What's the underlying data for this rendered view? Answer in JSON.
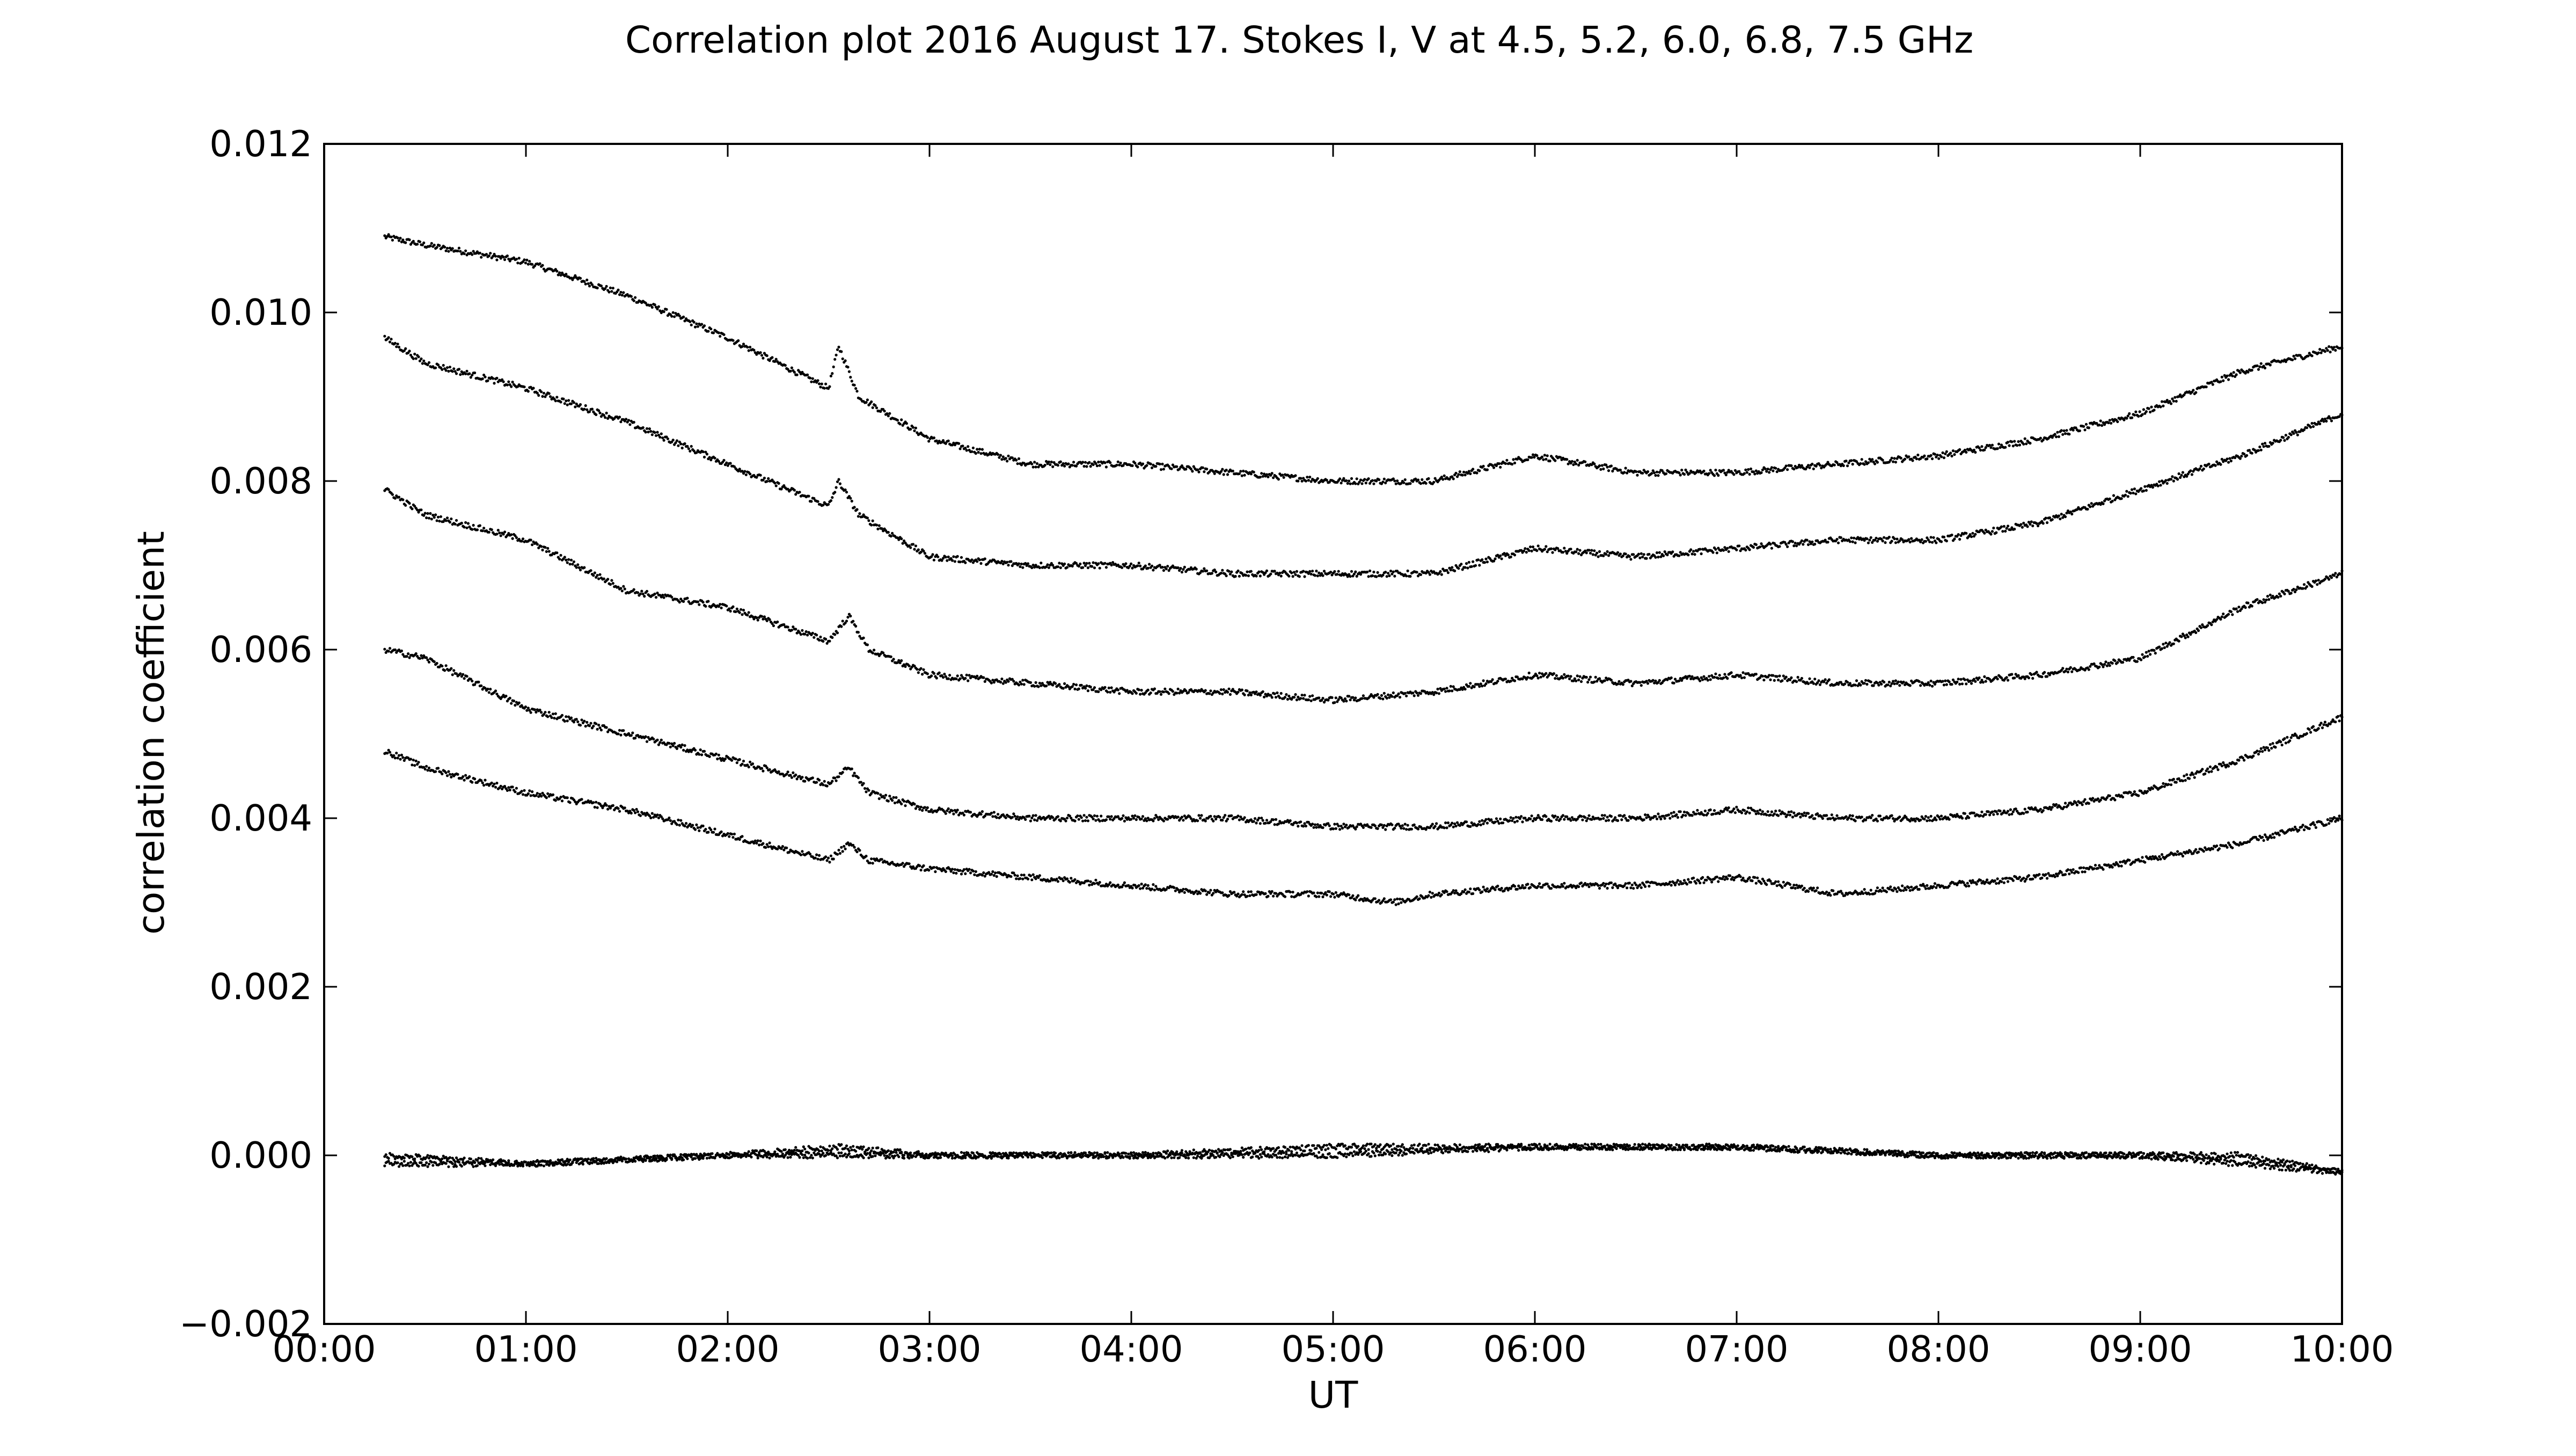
{
  "chart_data": {
    "type": "scatter",
    "title": "Correlation plot 2016 August 17. Stokes I, V at 4.5, 5.2, 6.0, 6.8, 7.5 GHz",
    "xlabel": "UT",
    "ylabel": "correlation coefficient",
    "x_unit": "UT hours",
    "xlim": [
      0,
      10
    ],
    "ylim": [
      -0.002,
      0.012
    ],
    "grid": false,
    "x_tick_values": [
      0,
      1,
      2,
      3,
      4,
      5,
      6,
      7,
      8,
      9,
      10
    ],
    "x_ticks": [
      "00:00",
      "01:00",
      "02:00",
      "03:00",
      "04:00",
      "05:00",
      "06:00",
      "07:00",
      "08:00",
      "09:00",
      "10:00"
    ],
    "y_tick_values": [
      -0.002,
      0.0,
      0.002,
      0.004,
      0.006,
      0.008,
      0.01,
      0.012
    ],
    "y_ticks": [
      "−0.002",
      "0.000",
      "0.002",
      "0.004",
      "0.006",
      "0.008",
      "0.010",
      "0.012"
    ],
    "marker_color": "#000000",
    "series": [
      {
        "x": [
          0.3,
          0.5,
          1.0,
          1.5,
          2.0,
          2.5,
          2.55,
          2.65,
          3.0,
          3.5,
          4.0,
          4.5,
          5.0,
          5.5,
          6.0,
          6.5,
          7.0,
          7.5,
          8.0,
          8.5,
          9.0,
          9.5,
          10.0
        ],
        "y": [
          0.0109,
          0.0108,
          0.0106,
          0.0102,
          0.0097,
          0.0091,
          0.0096,
          0.009,
          0.0085,
          0.0082,
          0.0082,
          0.0081,
          0.008,
          0.008,
          0.0083,
          0.0081,
          0.0081,
          0.0082,
          0.0083,
          0.0085,
          0.0088,
          0.0093,
          0.0096
        ]
      },
      {
        "x": [
          0.3,
          0.5,
          1.0,
          1.5,
          2.0,
          2.5,
          2.55,
          2.65,
          3.0,
          3.5,
          4.0,
          4.5,
          5.0,
          5.5,
          6.0,
          6.5,
          7.0,
          7.5,
          8.0,
          8.5,
          9.0,
          9.5,
          10.0
        ],
        "y": [
          0.0097,
          0.0094,
          0.0091,
          0.0087,
          0.0082,
          0.0077,
          0.008,
          0.0076,
          0.0071,
          0.007,
          0.007,
          0.0069,
          0.0069,
          0.0069,
          0.0072,
          0.0071,
          0.0072,
          0.0073,
          0.0073,
          0.0075,
          0.0079,
          0.0083,
          0.0088
        ]
      },
      {
        "x": [
          0.3,
          0.5,
          1.0,
          1.5,
          2.0,
          2.5,
          2.6,
          2.7,
          3.0,
          3.5,
          4.0,
          4.5,
          5.0,
          5.5,
          6.0,
          6.5,
          7.0,
          7.5,
          8.0,
          8.5,
          9.0,
          9.5,
          10.0
        ],
        "y": [
          0.0079,
          0.0076,
          0.0073,
          0.0067,
          0.0065,
          0.0061,
          0.0064,
          0.006,
          0.0057,
          0.0056,
          0.0055,
          0.0055,
          0.0054,
          0.0055,
          0.0057,
          0.0056,
          0.0057,
          0.0056,
          0.0056,
          0.0057,
          0.0059,
          0.0065,
          0.0069
        ]
      },
      {
        "x": [
          0.3,
          0.5,
          1.0,
          1.5,
          2.0,
          2.5,
          2.6,
          2.7,
          3.0,
          3.5,
          4.0,
          4.5,
          5.0,
          5.5,
          6.0,
          6.5,
          7.0,
          7.5,
          8.0,
          8.5,
          9.0,
          9.5,
          10.0
        ],
        "y": [
          0.006,
          0.0059,
          0.0053,
          0.005,
          0.0047,
          0.0044,
          0.0046,
          0.0043,
          0.0041,
          0.004,
          0.004,
          0.004,
          0.0039,
          0.0039,
          0.004,
          0.004,
          0.0041,
          0.004,
          0.004,
          0.0041,
          0.0043,
          0.0047,
          0.0052
        ]
      },
      {
        "x": [
          0.3,
          0.5,
          1.0,
          1.5,
          2.0,
          2.5,
          2.6,
          2.7,
          3.0,
          3.5,
          4.0,
          4.5,
          5.0,
          5.3,
          5.5,
          6.0,
          6.5,
          7.0,
          7.5,
          8.0,
          8.5,
          9.0,
          9.5,
          10.0
        ],
        "y": [
          0.0048,
          0.0046,
          0.0043,
          0.0041,
          0.0038,
          0.0035,
          0.0037,
          0.0035,
          0.0034,
          0.0033,
          0.0032,
          0.0031,
          0.0031,
          0.003,
          0.0031,
          0.0032,
          0.0032,
          0.0033,
          0.0031,
          0.0032,
          0.0033,
          0.0035,
          0.0037,
          0.004
        ]
      },
      {
        "x": [
          0.3,
          1.0,
          2.0,
          2.55,
          3.0,
          4.0,
          5.0,
          6.0,
          6.5,
          7.0,
          8.0,
          9.0,
          9.5,
          10.0
        ],
        "y": [
          -0.0001,
          -0.0001,
          0.0,
          0.0001,
          0.0,
          0.0,
          0.0001,
          0.0001,
          0.0001,
          0.0001,
          0.0,
          0.0,
          -0.0001,
          -0.0002
        ]
      },
      {
        "x": [
          0.3,
          1.0,
          2.0,
          3.0,
          4.0,
          5.0,
          6.0,
          7.0,
          8.0,
          9.0,
          9.5,
          10.0
        ],
        "y": [
          0.0,
          -0.0001,
          0.0,
          0.0,
          0.0,
          0.0,
          0.0001,
          0.0001,
          0.0,
          0.0,
          0.0,
          -0.0002
        ]
      }
    ]
  }
}
